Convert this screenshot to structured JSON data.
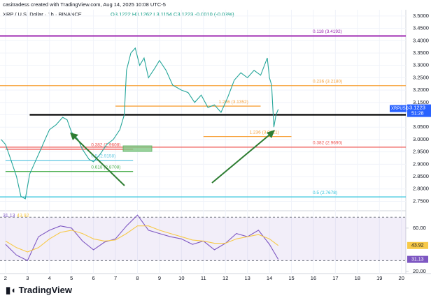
{
  "header": {
    "credit": "casitradess created with TradingView.com, Aug 14, 2025 10:08 UTC-5",
    "symbol": "XRP / U.S. Dollar · 1h · BINANCE",
    "ohlc": "O3.1222 H3.1262 L3.1154 C3.1223 -0.0010 (-0.03%)",
    "ticker": "XRPUSD",
    "countdown": "51:28",
    "brand": "TradingView"
  },
  "chart_data": [
    {
      "type": "line",
      "color": "#26a69a",
      "x": [
        1.8,
        2.0,
        2.2,
        2.5,
        2.7,
        2.9,
        3.1,
        3.3,
        3.6,
        3.8,
        4.0,
        4.3,
        4.6,
        4.8,
        5.0,
        5.3,
        5.5,
        5.8,
        6.0,
        6.3,
        6.6,
        6.9,
        7.2,
        7.4,
        7.5,
        7.7,
        7.9,
        8.1,
        8.3,
        8.5,
        8.8,
        9.0,
        9.3,
        9.6,
        10.0,
        10.3,
        10.6,
        10.9,
        11.2,
        11.5,
        11.8,
        12.1,
        12.4,
        12.7,
        13.0,
        13.3,
        13.6,
        13.9,
        14.0,
        14.1,
        14.2,
        14.3,
        14.4
      ],
      "values": [
        3.0,
        2.98,
        2.93,
        2.85,
        2.77,
        2.76,
        2.86,
        2.9,
        2.96,
        3.0,
        3.04,
        3.06,
        3.09,
        3.08,
        3.03,
        3.0,
        2.96,
        2.92,
        2.91,
        2.94,
        2.98,
        3.0,
        3.04,
        3.1,
        3.28,
        3.35,
        3.37,
        3.3,
        3.33,
        3.25,
        3.29,
        3.32,
        3.28,
        3.22,
        3.2,
        3.19,
        3.15,
        3.18,
        3.13,
        3.14,
        3.11,
        3.17,
        3.24,
        3.27,
        3.25,
        3.28,
        3.26,
        3.33,
        3.25,
        3.22,
        3.05,
        3.1,
        3.1223
      ],
      "xlim": [
        1.75,
        20.2
      ],
      "xticks": [
        2,
        3,
        4,
        5,
        6,
        7,
        8,
        9,
        10,
        11,
        12,
        13,
        14,
        15,
        16,
        17,
        18,
        19,
        20
      ],
      "ylim": [
        2.74,
        3.525
      ],
      "yticks": [
        {
          "value": 2.75,
          "label": "2.7500"
        },
        {
          "value": 2.8,
          "label": "2.8000"
        },
        {
          "value": 2.85,
          "label": "2.8500"
        },
        {
          "value": 2.9,
          "label": "2.9000"
        },
        {
          "value": 2.95,
          "label": "2.9500"
        },
        {
          "value": 3.0,
          "label": "3.0000"
        },
        {
          "value": 3.05,
          "label": "3.0500"
        },
        {
          "value": 3.1,
          "label": "3.1000"
        },
        {
          "value": 3.15,
          "label": "3.1500"
        },
        {
          "value": 3.2,
          "label": "3.2000"
        },
        {
          "value": 3.25,
          "label": "3.2500"
        },
        {
          "value": 3.3,
          "label": "3.3000"
        },
        {
          "value": 3.35,
          "label": "3.3500"
        },
        {
          "value": 3.4,
          "label": "3.4000"
        },
        {
          "value": 3.45,
          "label": "3.4500"
        },
        {
          "value": 3.5,
          "label": "3.5000"
        }
      ],
      "grid": true,
      "levels": [
        {
          "label": "0.118 (3.4192)",
          "value": 3.4192,
          "color": "#9c27b0"
        },
        {
          "label": "0.236 (3.2180)",
          "value": 3.218,
          "color": "#f7a23b"
        },
        {
          "label": "1.236 (3.1352)",
          "value": 3.1352,
          "color": "#f7a23b",
          "from": 7.0,
          "to": 13.6
        },
        {
          "label": "1.236 (3.0121)",
          "value": 3.0121,
          "color": "#f7a23b",
          "from": 11.0,
          "to": 15.0
        },
        {
          "label": "0.382 (2.9690)",
          "value": 2.969,
          "color": "#ef5350"
        },
        {
          "label": "0.382 (2.9608)",
          "value": 2.9608,
          "color": "#ef5350",
          "from": 2.0,
          "to": 7.8
        },
        {
          "label": "0.5 (2.9158)",
          "value": 2.9158,
          "color": "#5fc6e0",
          "from": 2.0,
          "to": 7.8
        },
        {
          "label": "0.618 (2.8708)",
          "value": 2.8708,
          "color": "#4caf50",
          "from": 2.0,
          "to": 7.8
        },
        {
          "label": "0.5 (2.7678)",
          "value": 2.7678,
          "color": "#2bc3dc"
        }
      ]
    },
    {
      "type": "line",
      "x": [
        2,
        2.5,
        3,
        3.5,
        4,
        4.5,
        5,
        5.5,
        6,
        6.5,
        7,
        7.5,
        8,
        8.5,
        9,
        9.5,
        10,
        10.5,
        11,
        11.5,
        12,
        12.5,
        13,
        13.5,
        14,
        14.4
      ],
      "series": [
        {
          "color": "#7e57c2",
          "values": [
            45,
            35,
            30,
            52,
            58,
            62,
            60,
            48,
            40,
            47,
            50,
            62,
            72,
            58,
            55,
            52,
            50,
            45,
            48,
            40,
            46,
            55,
            52,
            58,
            45,
            31.13
          ]
        },
        {
          "color": "#f7c948",
          "values": [
            48,
            42,
            38,
            42,
            50,
            56,
            58,
            55,
            50,
            48,
            49,
            55,
            62,
            62,
            58,
            55,
            52,
            49,
            48,
            46,
            46,
            50,
            52,
            54,
            50,
            43.92
          ]
        }
      ],
      "ylim": [
        18,
        76
      ],
      "yticks": [
        {
          "value": 60,
          "label": "60.00"
        },
        {
          "value": 20,
          "label": "20.00"
        }
      ],
      "band": [
        30,
        70
      ]
    }
  ]
}
